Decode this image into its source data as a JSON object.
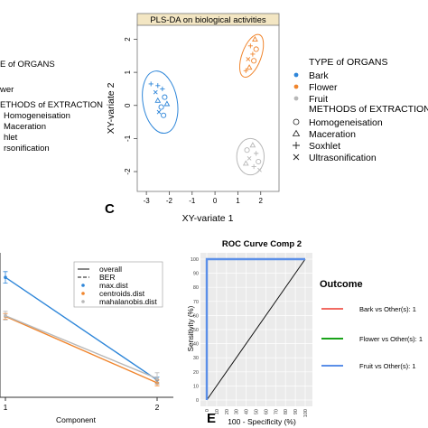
{
  "left_legend_fragment": {
    "lines": [
      "E of ORGANS",
      "wer",
      "ETHODS of EXTRACTION",
      "Homogeneisation",
      "Maceration",
      "hlet",
      "rsonification"
    ]
  },
  "plsda": {
    "chart_data": {
      "type": "scatter",
      "title": "PLS-DA on biological activities",
      "xlabel": "XY-variate 1",
      "ylabel": "XY-variate 2",
      "xlim": [
        -3.4,
        2.8
      ],
      "ylim": [
        -2.6,
        2.45
      ],
      "xticks": [
        -3,
        -2,
        -1,
        0,
        1,
        2
      ],
      "yticks": [
        -2,
        -1,
        0,
        1,
        2
      ],
      "grid": false,
      "legend_position": "right",
      "panel_label": "C",
      "groups": [
        {
          "name": "Bark",
          "color": "#2e86d9",
          "ellipse": {
            "cx": -2.4,
            "cy": 0.1,
            "rx": 0.75,
            "ry": 0.95,
            "angle": -10
          },
          "points": [
            {
              "x": -2.8,
              "y": 0.65,
              "m": "plus"
            },
            {
              "x": -2.5,
              "y": 0.6,
              "m": "plus"
            },
            {
              "x": -2.3,
              "y": 0.5,
              "m": "plus"
            },
            {
              "x": -2.6,
              "y": 0.4,
              "m": "x"
            },
            {
              "x": -2.2,
              "y": 0.25,
              "m": "circle"
            },
            {
              "x": -2.5,
              "y": 0.15,
              "m": "triangle"
            },
            {
              "x": -2.35,
              "y": -0.05,
              "m": "circle"
            },
            {
              "x": -2.1,
              "y": 0.05,
              "m": "triangle"
            },
            {
              "x": -2.45,
              "y": -0.2,
              "m": "x"
            },
            {
              "x": -2.25,
              "y": -0.3,
              "m": "circle"
            }
          ]
        },
        {
          "name": "Flower",
          "color": "#f0852d",
          "ellipse": {
            "cx": 1.6,
            "cy": 1.5,
            "rx": 0.42,
            "ry": 0.68,
            "angle": 20
          },
          "points": [
            {
              "x": 1.75,
              "y": 2.0,
              "m": "triangle"
            },
            {
              "x": 1.55,
              "y": 1.8,
              "m": "plus"
            },
            {
              "x": 1.8,
              "y": 1.7,
              "m": "circle"
            },
            {
              "x": 1.65,
              "y": 1.55,
              "m": "plus"
            },
            {
              "x": 1.45,
              "y": 1.4,
              "m": "x"
            },
            {
              "x": 1.7,
              "y": 1.35,
              "m": "circle"
            },
            {
              "x": 1.5,
              "y": 1.15,
              "m": "triangle"
            },
            {
              "x": 1.35,
              "y": 1.05,
              "m": "plus"
            }
          ]
        },
        {
          "name": "Fruit",
          "color": "#b8b8b8",
          "ellipse": {
            "cx": 1.55,
            "cy": -1.55,
            "rx": 0.6,
            "ry": 0.55,
            "angle": 0
          },
          "points": [
            {
              "x": 1.65,
              "y": -1.2,
              "m": "triangle"
            },
            {
              "x": 1.4,
              "y": -1.35,
              "m": "circle"
            },
            {
              "x": 1.8,
              "y": -1.45,
              "m": "plus"
            },
            {
              "x": 1.5,
              "y": -1.6,
              "m": "x"
            },
            {
              "x": 1.9,
              "y": -1.7,
              "m": "circle"
            },
            {
              "x": 1.35,
              "y": -1.75,
              "m": "triangle"
            },
            {
              "x": 1.7,
              "y": -1.85,
              "m": "plus"
            },
            {
              "x": 1.95,
              "y": -1.95,
              "m": "x"
            }
          ]
        }
      ]
    },
    "legend": {
      "type_title": "TYPE of ORGANS",
      "types": [
        {
          "label": "Bark",
          "color": "#2e86d9"
        },
        {
          "label": "Flower",
          "color": "#f0852d"
        },
        {
          "label": "Fruit",
          "color": "#b8b8b8"
        }
      ],
      "methods_title": "METHODS of EXTRACTION",
      "methods": [
        {
          "label": "Homogeneisation",
          "marker": "circle"
        },
        {
          "label": "Maceration",
          "marker": "triangle"
        },
        {
          "label": "Soxhlet",
          "marker": "plus"
        },
        {
          "label": "Ultrasonification",
          "marker": "x"
        }
      ]
    }
  },
  "perf": {
    "chart_data": {
      "type": "line",
      "xlabel": "Component",
      "ylabel": "",
      "x": [
        1,
        2
      ],
      "xticks": [
        1,
        2
      ],
      "ylim": [
        0,
        1
      ],
      "series": [
        {
          "name": "max.dist",
          "color": "#2e86d9",
          "dash": "solid",
          "values": [
            0.83,
            0.12
          ],
          "err": [
            0.04,
            0.02
          ]
        },
        {
          "name": "centroids.dist",
          "color": "#f0852d",
          "dash": "solid",
          "values": [
            0.56,
            0.1
          ],
          "err": [
            0.02,
            0.02
          ]
        },
        {
          "name": "mahalanobis.dist",
          "color": "#b8b8b8",
          "dash": "solid",
          "values": [
            0.565,
            0.13
          ],
          "err": [
            0.03,
            0.04
          ]
        }
      ],
      "legend": [
        {
          "label": "overall",
          "style": "solid"
        },
        {
          "label": "BER",
          "style": "dashed"
        },
        {
          "label": "max.dist",
          "style": "dot",
          "color": "#2e86d9"
        },
        {
          "label": "centroids.dist",
          "style": "dot",
          "color": "#f0852d"
        },
        {
          "label": "mahalanobis.dist",
          "style": "dot",
          "color": "#b8b8b8"
        }
      ]
    }
  },
  "roc": {
    "chart_data": {
      "type": "line",
      "title": "ROC Curve Comp 2",
      "xlabel": "100 - Specificity (%)",
      "ylabel": "Sensitivity (%)",
      "xlim": [
        0,
        100
      ],
      "ylim": [
        0,
        100
      ],
      "xticks": [
        0,
        10,
        20,
        30,
        40,
        50,
        60,
        70,
        80,
        90,
        100
      ],
      "yticks": [
        0,
        10,
        20,
        30,
        40,
        50,
        60,
        70,
        80,
        90,
        100
      ],
      "panel_label": "E",
      "legend_title": "Outcome",
      "series": [
        {
          "name": "Bark vs Other(s): 1",
          "color": "#f26b63",
          "x": [
            0,
            0,
            100
          ],
          "y": [
            0,
            100,
            100
          ]
        },
        {
          "name": "Flower vs Other(s): 1",
          "color": "#1aa31a",
          "x": [
            0,
            0,
            100
          ],
          "y": [
            0,
            100,
            100
          ]
        },
        {
          "name": "Fruit vs Other(s): 1",
          "color": "#5b8fe8",
          "x": [
            0,
            0,
            100
          ],
          "y": [
            0,
            100,
            100
          ]
        }
      ],
      "reference_line": {
        "x": [
          0,
          100
        ],
        "y": [
          0,
          100
        ]
      }
    }
  }
}
